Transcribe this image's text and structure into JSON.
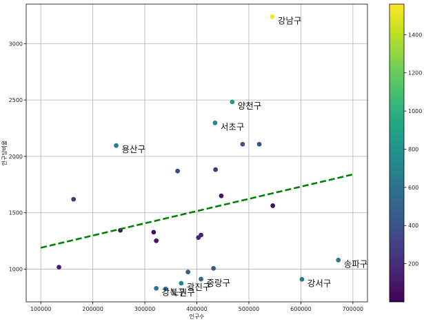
{
  "chart_data": {
    "type": "scatter",
    "title": "",
    "xlabel": "인구수",
    "ylabel": "인구당비율",
    "xlim": [
      72000,
      728000
    ],
    "ylim": [
      710,
      3350
    ],
    "grid": true,
    "x_ticks": [
      100000,
      200000,
      300000,
      400000,
      500000,
      600000,
      700000
    ],
    "x_tick_labels": [
      "100000",
      "200000",
      "300000",
      "400000",
      "500000",
      "600000",
      "700000"
    ],
    "y_ticks": [
      1000,
      1500,
      2000,
      2500,
      3000
    ],
    "y_tick_labels": [
      "1000",
      "1500",
      "2000",
      "2500",
      "3000"
    ],
    "colormap": "viridis",
    "colorbar": {
      "range": [
        0,
        1560
      ],
      "ticks": [
        200,
        400,
        600,
        800,
        1000,
        1200,
        1400
      ],
      "tick_labels": [
        "200",
        "400",
        "600",
        "800",
        "1000",
        "1200",
        "1400"
      ]
    },
    "points": [
      {
        "x": 545000,
        "y": 3238,
        "c": 1560,
        "label": "강남구"
      },
      {
        "x": 468000,
        "y": 2483,
        "c": 850,
        "label": "양천구"
      },
      {
        "x": 435000,
        "y": 2297,
        "c": 720,
        "label": "서초구"
      },
      {
        "x": 245000,
        "y": 2096,
        "c": 680,
        "label": "용산구"
      },
      {
        "x": 672000,
        "y": 1081,
        "c": 620,
        "label": "송파구"
      },
      {
        "x": 602000,
        "y": 910,
        "c": 650,
        "label": "강서구"
      },
      {
        "x": 408000,
        "y": 912,
        "c": 550,
        "label": "중랑구"
      },
      {
        "x": 370000,
        "y": 875,
        "c": 700,
        "label": "광진구"
      },
      {
        "x": 322000,
        "y": 830,
        "c": 620,
        "label": "강북구"
      },
      {
        "x": 340000,
        "y": 825,
        "c": 580,
        "label": "노원구"
      },
      {
        "x": 488000,
        "y": 2108,
        "c": 380,
        "label": ""
      },
      {
        "x": 520000,
        "y": 2108,
        "c": 380,
        "label": ""
      },
      {
        "x": 436000,
        "y": 1883,
        "c": 250,
        "label": ""
      },
      {
        "x": 363000,
        "y": 1870,
        "c": 330,
        "label": ""
      },
      {
        "x": 163000,
        "y": 1620,
        "c": 250,
        "label": ""
      },
      {
        "x": 447000,
        "y": 1650,
        "c": 90,
        "label": ""
      },
      {
        "x": 546000,
        "y": 1563,
        "c": 60,
        "label": ""
      },
      {
        "x": 253000,
        "y": 1345,
        "c": 40,
        "label": ""
      },
      {
        "x": 317000,
        "y": 1328,
        "c": 60,
        "label": ""
      },
      {
        "x": 322000,
        "y": 1252,
        "c": 70,
        "label": ""
      },
      {
        "x": 408000,
        "y": 1303,
        "c": 150,
        "label": ""
      },
      {
        "x": 403000,
        "y": 1280,
        "c": 150,
        "label": ""
      },
      {
        "x": 135000,
        "y": 1018,
        "c": 120,
        "label": ""
      },
      {
        "x": 432000,
        "y": 1007,
        "c": 430,
        "label": ""
      },
      {
        "x": 383000,
        "y": 975,
        "c": 450,
        "label": ""
      }
    ],
    "trendline": {
      "style": "dashed",
      "color": "#008000",
      "x": [
        100000,
        700000
      ],
      "y": [
        1190,
        1840
      ]
    }
  }
}
